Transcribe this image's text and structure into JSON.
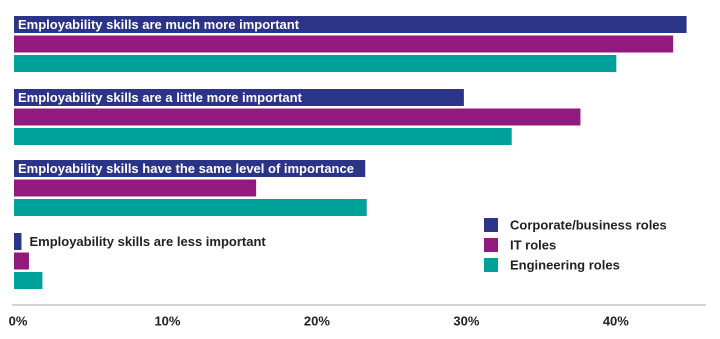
{
  "chart_data": {
    "type": "bar",
    "orientation": "horizontal",
    "categories": [
      "Employability skills are much more important",
      "Employability skills are a little more important",
      "Employability skills have the same level of importance",
      "Employability skills are less important"
    ],
    "series": [
      {
        "name": "Corporate/business roles",
        "color": "#2b3486",
        "values": [
          45.0,
          30.1,
          23.5,
          0.5
        ]
      },
      {
        "name": "IT roles",
        "color": "#92197e",
        "values": [
          44.1,
          37.9,
          16.2,
          1.0
        ]
      },
      {
        "name": "Engineering roles",
        "color": "#00a19a",
        "values": [
          40.3,
          33.3,
          23.6,
          1.9
        ]
      }
    ],
    "xlim": [
      0,
      46.5
    ],
    "xticks": [
      {
        "value": 0,
        "label": "0%"
      },
      {
        "value": 10,
        "label": "10%"
      },
      {
        "value": 20,
        "label": "20%"
      },
      {
        "value": 30,
        "label": "30%"
      },
      {
        "value": 40,
        "label": "40%"
      }
    ],
    "legend": "lower right"
  }
}
